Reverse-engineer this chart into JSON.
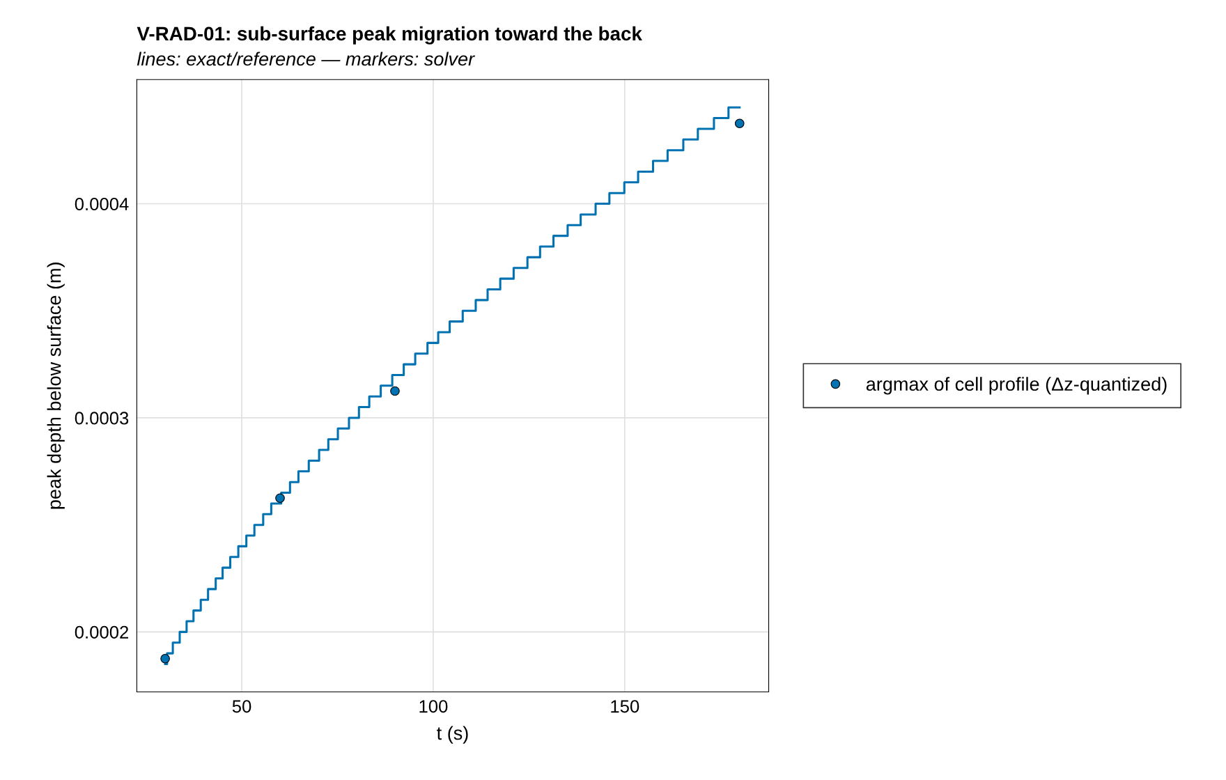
{
  "chart_data": {
    "type": "step",
    "title": "V-RAD-01: sub-surface peak migration toward the back",
    "subtitle": "lines: exact/reference — markers: solver",
    "xlabel": "t (s)",
    "ylabel": "peak depth below surface (m)",
    "series": [
      {
        "color": "#0072b2",
        "x": [
          30,
          30.5,
          32.0,
          33.8,
          35.6,
          37.4,
          39.3,
          41.2,
          43.2,
          45.0,
          47.0,
          49.1,
          51.2,
          53.3,
          55.6,
          57.7,
          60.3,
          62.6,
          64.8,
          67.5,
          70.2,
          72.6,
          75.1,
          78.0,
          80.6,
          83.3,
          86.3,
          89.3,
          92.3,
          95.3,
          98.5,
          101.3,
          104.3,
          107.7,
          111.1,
          114.2,
          117.5,
          121.0,
          124.6,
          127.9,
          131.4,
          135.1,
          138.5,
          142.4,
          146.0,
          149.9,
          153.5,
          157.4,
          161.2,
          165.3,
          169.1,
          173.3,
          177.1,
          180
        ],
        "values": [
          0.000185,
          0.00019,
          0.000195,
          0.0002,
          0.000205,
          0.00021,
          0.000215,
          0.00022,
          0.000225,
          0.00023,
          0.000235,
          0.00024,
          0.000245,
          0.00025,
          0.000255,
          0.00026,
          0.000265,
          0.00027,
          0.000275,
          0.00028,
          0.000285,
          0.00029,
          0.000295,
          0.0003,
          0.000305,
          0.00031,
          0.000315,
          0.00032,
          0.000325,
          0.00033,
          0.000335,
          0.00034,
          0.000345,
          0.00035,
          0.000355,
          0.00036,
          0.000365,
          0.00037,
          0.000375,
          0.00038,
          0.000385,
          0.00039,
          0.000395,
          0.0004,
          0.000405,
          0.00041,
          0.000415,
          0.00042,
          0.000425,
          0.00043,
          0.000435,
          0.00044,
          0.000445,
          0.000445
        ]
      },
      {
        "type": "scatter",
        "name": "argmax of cell profile (Δz-quantized)",
        "color": "#0072b2",
        "marker": "circle",
        "x": [
          30,
          60,
          90,
          180
        ],
        "values": [
          0.0001875,
          0.0002625,
          0.0003125,
          0.0004375
        ]
      }
    ],
    "xlim": [
      22.6,
      187.6
    ],
    "ylim": [
      0.000172,
      0.000458
    ],
    "xticks": [
      50,
      100,
      150
    ],
    "yticks": [
      0.0002,
      0.0003,
      0.0004
    ],
    "grid": true,
    "legend": "right"
  }
}
